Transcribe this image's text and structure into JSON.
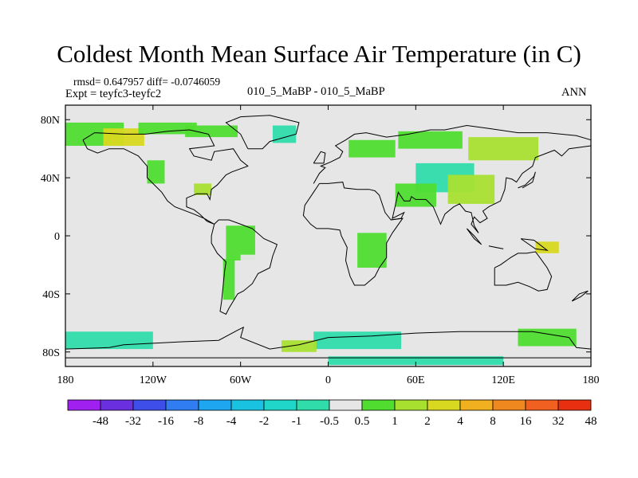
{
  "chart_data": {
    "type": "heatmap",
    "title": "Coldest Month Mean Surface Air Temperature (in C)",
    "stats_line": "rmsd= 0.647957 diff= -0.0746059",
    "experiment_line": "Expt = teyfc3-teyfc2",
    "center_label": "010_5_MaBP - 010_5_MaBP",
    "season_label": "ANN",
    "x_ticks": [
      {
        "value": -180,
        "label": "180"
      },
      {
        "value": -120,
        "label": "120W"
      },
      {
        "value": -60,
        "label": "60W"
      },
      {
        "value": 0,
        "label": "0"
      },
      {
        "value": 60,
        "label": "60E"
      },
      {
        "value": 120,
        "label": "120E"
      },
      {
        "value": 180,
        "label": "180"
      }
    ],
    "y_ticks": [
      {
        "value": 80,
        "label": "80N"
      },
      {
        "value": 40,
        "label": "40N"
      },
      {
        "value": 0,
        "label": "0"
      },
      {
        "value": -40,
        "label": "40S"
      },
      {
        "value": -80,
        "label": "80S"
      }
    ],
    "xlim": [
      -180,
      180
    ],
    "ylim": [
      -90,
      90
    ],
    "colorbar": {
      "levels": [
        "-48",
        "-32",
        "-16",
        "-8",
        "-4",
        "-2",
        "-1",
        "-0.5",
        "0.5",
        "1",
        "2",
        "4",
        "8",
        "16",
        "32",
        "48"
      ],
      "colors": [
        "#a020f0",
        "#6a30e0",
        "#3e4ee8",
        "#2f7df0",
        "#1fa6f0",
        "#18c2e0",
        "#20d6c8",
        "#30dcaa",
        "#e6e6e6",
        "#50dd30",
        "#a8e030",
        "#d8d820",
        "#f0b020",
        "#f08820",
        "#f06020",
        "#e83010"
      ]
    },
    "background_color": "#e6e6e6",
    "land_color": "#50dd30",
    "ocean_color": "#20d6c8",
    "coast_color": "#000000"
  }
}
